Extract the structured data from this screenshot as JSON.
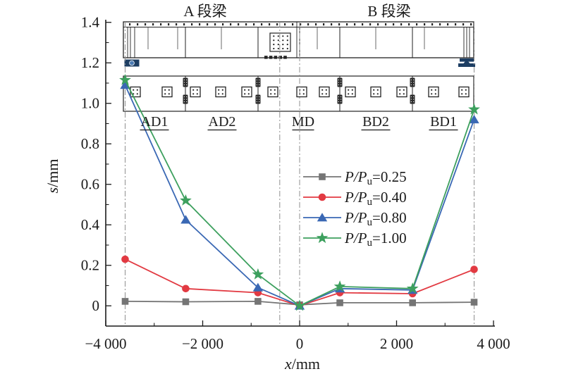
{
  "figure": {
    "title_beam_a": "A 段梁",
    "title_beam_b": "B 段梁",
    "segment_labels": [
      "AD1",
      "AD2",
      "MD",
      "BD2",
      "BD1"
    ],
    "background": "#ffffff"
  },
  "chart_data": {
    "type": "line",
    "xlabel": {
      "var": "x",
      "unit": "/mm"
    },
    "ylabel": {
      "var": "s",
      "unit": "/mm"
    },
    "xlim": [
      -4000,
      4000
    ],
    "ylim": [
      -0.1,
      1.413
    ],
    "xticks_major": [
      -4000,
      -2000,
      0,
      2000,
      4000
    ],
    "xtick_labels": [
      "−4 000",
      "−2 000",
      "0",
      "2 000",
      "4 000"
    ],
    "xticks_minor": [
      -3000,
      -1000,
      1000,
      3000
    ],
    "yticks_major": [
      0,
      0.2,
      0.4,
      0.6,
      0.8,
      1.0,
      1.2,
      1.4
    ],
    "ytick_labels": [
      "0",
      "0.2",
      "0.4",
      "0.6",
      "0.8",
      "1.0",
      "1.2",
      "1.4"
    ],
    "yticks_minor": [
      0.1,
      0.3,
      0.5,
      0.7,
      0.9,
      1.1,
      1.3
    ],
    "grid": false,
    "legend_position": "center-right",
    "reference_lines_x": [
      -3600,
      -410,
      0,
      3600
    ],
    "x": [
      -3600,
      -2350,
      -860,
      0,
      830,
      2330,
      3600
    ],
    "series": [
      {
        "name": "P/Pu=0.25",
        "label_main": "P/P",
        "label_sub": "u",
        "label_rest": "=0.25",
        "marker": "square",
        "color": "#757575",
        "values": [
          0.022,
          0.02,
          0.022,
          0.005,
          0.015,
          0.015,
          0.018
        ]
      },
      {
        "name": "P/Pu=0.40",
        "label_main": "P/P",
        "label_sub": "u",
        "label_rest": "=0.40",
        "marker": "circle",
        "color": "#e23a42",
        "values": [
          0.23,
          0.085,
          0.065,
          0.0,
          0.065,
          0.06,
          0.18
        ]
      },
      {
        "name": "P/Pu=0.80",
        "label_main": "P/P",
        "label_sub": "u",
        "label_rest": "=0.80",
        "marker": "triangle",
        "color": "#3a68b4",
        "values": [
          1.09,
          0.425,
          0.09,
          0.0,
          0.085,
          0.078,
          0.92
        ]
      },
      {
        "name": "P/Pu=1.00",
        "label_main": "P/P",
        "label_sub": "u",
        "label_rest": "=1.00",
        "marker": "star",
        "color": "#3da05e",
        "values": [
          1.115,
          0.52,
          0.155,
          0.0,
          0.095,
          0.085,
          0.97
        ]
      }
    ],
    "support_color": "#1d3e63"
  }
}
